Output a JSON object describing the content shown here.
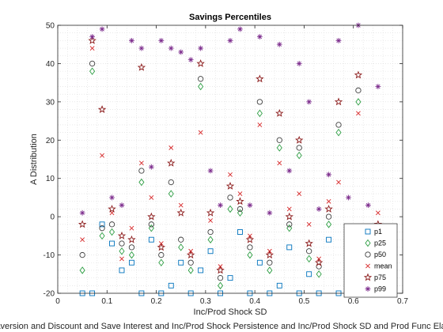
{
  "chart_data": {
    "type": "scatter",
    "title": "Savings Percentiles",
    "xlabel": "Inc/Prod Shock SD",
    "ylabel": "A Distribution",
    "caption": "Risk Aversion and Discount and Save Interest and Inc/Prod Shock Persistence and Inc/Prod Shock SD and Prod Func Elasticity and",
    "xlim": [
      0,
      0.7
    ],
    "ylim": [
      -20,
      50
    ],
    "x_ticks": [
      "0",
      "0.1",
      "0.2",
      "0.3",
      "0.4",
      "0.5",
      "0.6",
      "0.7"
    ],
    "y_ticks": [
      "-20",
      "-10",
      "0",
      "10",
      "20",
      "30",
      "40",
      "50"
    ],
    "grid": true,
    "legend_position": "bottom-right",
    "x_clusters": [
      0.05,
      0.07,
      0.09,
      0.11,
      0.13,
      0.15,
      0.17,
      0.19,
      0.21,
      0.23,
      0.25,
      0.27,
      0.29,
      0.31,
      0.33,
      0.35,
      0.37,
      0.39,
      0.41,
      0.43,
      0.45,
      0.47,
      0.49,
      0.51,
      0.53,
      0.55,
      0.57,
      0.59,
      0.61,
      0.63,
      0.65
    ],
    "series": [
      {
        "name": "p1",
        "marker": "square",
        "color": "#0072BD",
        "values": [
          -20,
          -20,
          -2,
          -7,
          -14,
          -12,
          -20,
          -6,
          -20,
          -18,
          -12,
          -20,
          -14,
          -9,
          -20,
          -16,
          -4,
          -20,
          -12,
          -20,
          -18,
          -8,
          -20,
          -15,
          -20,
          -6,
          -20,
          -12,
          -20,
          -17,
          -9
        ]
      },
      {
        "name": "p25",
        "marker": "diamond",
        "color": "#2E9E44",
        "values": [
          -14,
          38,
          -5,
          -4,
          -9,
          -10,
          9,
          -3,
          -12,
          6,
          -8,
          -14,
          34,
          -6,
          -18,
          2,
          1,
          -10,
          27,
          -14,
          18,
          -3,
          16,
          -11,
          -15,
          -2,
          22,
          -8,
          30,
          -12,
          -5
        ]
      },
      {
        "name": "p50",
        "marker": "circle",
        "color": "#404040",
        "values": [
          -10,
          40,
          -3,
          -2,
          -7,
          -8,
          12,
          -2,
          -10,
          9,
          -6,
          -12,
          36,
          -4,
          -16,
          5,
          2,
          -8,
          30,
          -12,
          20,
          -2,
          18,
          -9,
          -13,
          0,
          24,
          -6,
          33,
          -10,
          -4
        ]
      },
      {
        "name": "mean",
        "marker": "x",
        "color": "#D62728",
        "values": [
          -6,
          44,
          16,
          1,
          -11,
          -3,
          14,
          5,
          -7,
          18,
          3,
          -9,
          22,
          -1,
          -13,
          11,
          6,
          -5,
          24,
          -9,
          14,
          2,
          6,
          -2,
          -11,
          4,
          9,
          -4,
          27,
          -7,
          1
        ]
      },
      {
        "name": "p75",
        "marker": "pentagram",
        "color": "#8B1A1A",
        "values": [
          -2,
          46,
          28,
          2,
          -5,
          -6,
          39,
          0,
          -8,
          14,
          1,
          -10,
          40,
          1,
          -14,
          8,
          4,
          -6,
          36,
          -10,
          27,
          0,
          20,
          -7,
          -12,
          2,
          30,
          -3,
          37,
          -8,
          -2
        ]
      },
      {
        "name": "p99",
        "marker": "asterisk",
        "color": "#7E2F8E",
        "values": [
          1,
          47,
          49,
          5,
          3,
          46,
          44,
          13,
          46,
          44,
          43,
          41,
          44,
          12,
          3,
          46,
          49,
          3,
          47,
          1,
          45,
          12,
          40,
          30,
          2,
          11,
          46,
          5,
          50,
          3,
          34
        ]
      }
    ]
  }
}
